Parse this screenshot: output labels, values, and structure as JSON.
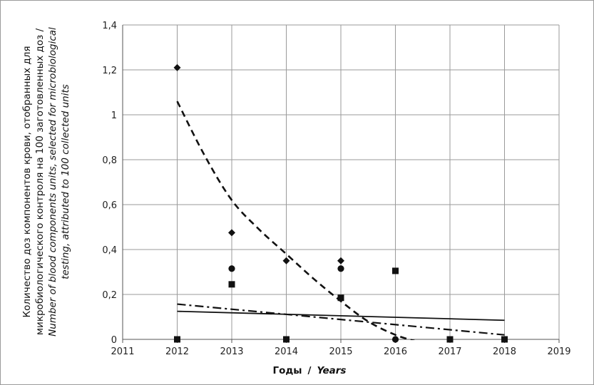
{
  "chart_data": {
    "type": "scatter",
    "title": "",
    "xlabel_ru": "Годы",
    "xlabel_sep": "/",
    "xlabel_en": "Years",
    "ylabel_lines": [
      {
        "text": "Количество доз компонентов крови, отобранных для",
        "italic": false
      },
      {
        "text": "микробиологического контроля на 100 заготовленных доз /",
        "italic": false
      },
      {
        "text": "Number of blood components units, selected for  microbiological",
        "italic": true
      },
      {
        "text": "testing, attributed to 100 collected units",
        "italic": true
      }
    ],
    "xlim": [
      2011,
      2019
    ],
    "ylim": [
      0,
      1.4
    ],
    "x_ticks": [
      2011,
      2012,
      2013,
      2014,
      2015,
      2016,
      2017,
      2018,
      2019
    ],
    "x_tick_labels": [
      "2011",
      "2012",
      "2013",
      "2014",
      "2015",
      "2016",
      "2017",
      "2018",
      "2019"
    ],
    "y_ticks": [
      0,
      0.2,
      0.4,
      0.6,
      0.8,
      1,
      1.2,
      1.4
    ],
    "y_tick_labels": [
      "0",
      "0,2",
      "0,4",
      "0,6",
      "0,8",
      "1",
      "1,2",
      "1,4"
    ],
    "grid": true,
    "series": [
      {
        "marker": "diamond",
        "x": [
          2012,
          2013,
          2014,
          2015
        ],
        "y": [
          1.21,
          0.475,
          0.35,
          0.35
        ]
      },
      {
        "marker": "circle",
        "x": [
          2013,
          2015,
          2016
        ],
        "y": [
          0.315,
          0.315,
          0.0
        ]
      },
      {
        "marker": "square",
        "x": [
          2012,
          2013,
          2014,
          2015,
          2016,
          2017,
          2018
        ],
        "y": [
          0.0,
          0.245,
          0.0,
          0.185,
          0.305,
          0.0,
          0.0
        ]
      }
    ],
    "trendlines": [
      {
        "style": "dashed",
        "x": [
          2012,
          2012.5,
          2013,
          2013.5,
          2014,
          2014.5,
          2015,
          2015.5,
          2016,
          2016.4
        ],
        "y": [
          1.06,
          0.82,
          0.62,
          0.49,
          0.38,
          0.27,
          0.17,
          0.08,
          0.02,
          -0.01
        ]
      },
      {
        "style": "solid",
        "x": [
          2012,
          2018
        ],
        "y": [
          0.125,
          0.085
        ]
      },
      {
        "style": "dash-dot",
        "x": [
          2012,
          2018
        ],
        "y": [
          0.157,
          0.02
        ]
      }
    ]
  }
}
